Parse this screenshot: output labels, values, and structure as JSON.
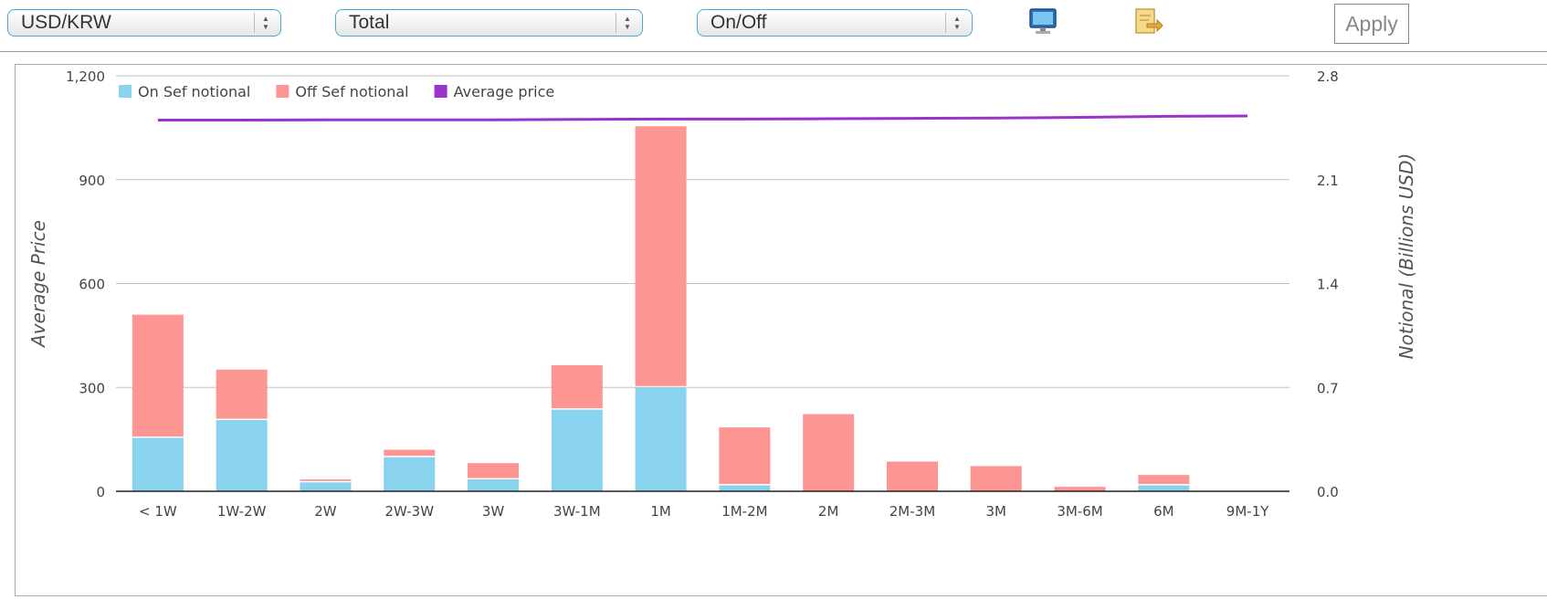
{
  "toolbar": {
    "pair_select": "USD/KRW",
    "total_select": "Total",
    "onoff_select": "On/Off",
    "monitor_icon": "monitor-icon",
    "export_icon": "export-icon",
    "apply_label": "Apply"
  },
  "colors": {
    "on_sef": "#8ad3ee",
    "off_sef": "#fd9593",
    "avg_price": "#9933cc",
    "grid": "#c0c0c0",
    "select_border": "#49a9d6"
  },
  "chart_data": {
    "type": "bar",
    "stacked": true,
    "categories": [
      "< 1W",
      "1W-2W",
      "2W",
      "2W-3W",
      "3W",
      "3W-1M",
      "1M",
      "1M-2M",
      "2M",
      "2M-3M",
      "3M",
      "3M-6M",
      "6M",
      "9M-1Y"
    ],
    "series": [
      {
        "name": "On Sef notional",
        "axis": "right",
        "values": [
          0.36,
          0.48,
          0.06,
          0.23,
          0.08,
          0.55,
          0.7,
          0.04,
          0.0,
          0.0,
          0.0,
          0.0,
          0.04,
          0.0
        ]
      },
      {
        "name": "Off Sef notional",
        "axis": "right",
        "values": [
          0.83,
          0.34,
          0.02,
          0.05,
          0.11,
          0.3,
          1.76,
          0.39,
          0.52,
          0.2,
          0.17,
          0.03,
          0.07,
          0.0
        ]
      },
      {
        "name": "Average price",
        "axis": "left",
        "type": "line",
        "values": [
          1072,
          1072,
          1073,
          1073,
          1073,
          1074,
          1075,
          1075,
          1076,
          1077,
          1078,
          1080,
          1083,
          1084
        ]
      }
    ],
    "ylabel_left": "Average Price",
    "ylabel_right": "Notional (Billions USD)",
    "yticks_left": [
      "0",
      "300",
      "600",
      "900",
      "1,200"
    ],
    "yticks_right": [
      "0.0",
      "0.7",
      "1.4",
      "2.1",
      "2.8"
    ],
    "ylim_left": [
      0,
      1200
    ],
    "ylim_right": [
      0,
      2.8
    ],
    "grid": true,
    "legend_position": "top-left"
  }
}
